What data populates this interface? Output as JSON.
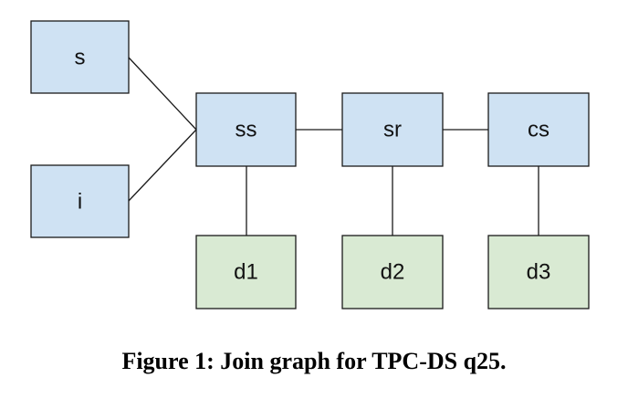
{
  "diagram": {
    "type": "join-graph",
    "nodes": {
      "s": {
        "label": "s",
        "color": "#cfe2f3"
      },
      "i": {
        "label": "i",
        "color": "#cfe2f3"
      },
      "ss": {
        "label": "ss",
        "color": "#cfe2f3"
      },
      "sr": {
        "label": "sr",
        "color": "#cfe2f3"
      },
      "cs": {
        "label": "cs",
        "color": "#cfe2f3"
      },
      "d1": {
        "label": "d1",
        "color": "#d9ead3"
      },
      "d2": {
        "label": "d2",
        "color": "#d9ead3"
      },
      "d3": {
        "label": "d3",
        "color": "#d9ead3"
      }
    },
    "edges": [
      [
        "s",
        "ss"
      ],
      [
        "i",
        "ss"
      ],
      [
        "ss",
        "sr"
      ],
      [
        "sr",
        "cs"
      ],
      [
        "ss",
        "d1"
      ],
      [
        "sr",
        "d2"
      ],
      [
        "cs",
        "d3"
      ]
    ]
  },
  "caption": "Figure 1: Join graph for TPC-DS q25."
}
